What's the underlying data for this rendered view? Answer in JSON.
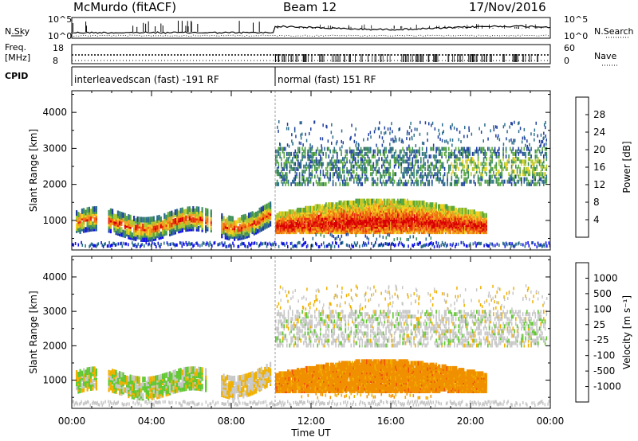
{
  "header": {
    "station": "McMurdo (fitACF)",
    "beam": "Beam 12",
    "date": "17/Nov/2016"
  },
  "status_panels": {
    "nsky_label": "N.Sky",
    "nsearch_label": "N.Search",
    "freq_label_line1": "Freq.",
    "freq_label_line2": "[MHz]",
    "nave_label": "Nave",
    "cpid_label": "CPID",
    "noise_ticks_left": [
      "10^5",
      "10^0"
    ],
    "noise_ticks_right": [
      "10^5",
      "10^0"
    ],
    "freq_ticks": [
      "18",
      "8"
    ],
    "nave_ticks": [
      "60",
      "0"
    ],
    "cpid_segments": [
      {
        "start_hour": 0,
        "end_hour": 10.2,
        "label": "interleavedscan (fast) -191 RF"
      },
      {
        "start_hour": 10.2,
        "end_hour": 24,
        "label": "normal (fast) 151 RF"
      }
    ]
  },
  "chart_data": [
    {
      "type": "heatmap",
      "quantity": "Power",
      "ylabel": "Slant Range [km]",
      "xlabel": "Time UT",
      "xlim_hours": [
        0,
        24
      ],
      "ylim_km": [
        180,
        4600
      ],
      "yticks": [
        1000,
        2000,
        3000,
        4000
      ],
      "xtick_labels": [
        "00:00",
        "04:00",
        "08:00",
        "12:00",
        "16:00",
        "20:00",
        "00:00"
      ],
      "colorbar": {
        "label": "Power [dB]",
        "ticks": [
          "4",
          "8",
          "12",
          "16",
          "20",
          "24",
          "28"
        ],
        "colors": [
          "#1010e8",
          "#2040a0",
          "#2c6e8c",
          "#3f8f5a",
          "#5caa3c",
          "#b0c830",
          "#f0d020",
          "#f0a020",
          "#f07010",
          "#e83010",
          "#d80000"
        ]
      },
      "features": [
        {
          "t0": 0.2,
          "t1": 10.0,
          "r0": 600,
          "r1": 1200,
          "level": "medium-high"
        },
        {
          "t0": 10.2,
          "t1": 20.8,
          "r0": 600,
          "r1": 1600,
          "level": "high"
        },
        {
          "t0": 10.2,
          "t1": 23.8,
          "r0": 2000,
          "r1": 3000,
          "level": "low"
        },
        {
          "t0": 0.0,
          "t1": 24.0,
          "r0": 200,
          "r1": 400,
          "level": "low"
        }
      ]
    },
    {
      "type": "heatmap",
      "quantity": "Velocity",
      "ylabel": "Slant Range [km]",
      "xlabel": "Time UT",
      "xlim_hours": [
        0,
        24
      ],
      "ylim_km": [
        180,
        4600
      ],
      "yticks": [
        1000,
        2000,
        3000,
        4000
      ],
      "xtick_labels": [
        "00:00",
        "04:00",
        "08:00",
        "12:00",
        "16:00",
        "20:00",
        "00:00"
      ],
      "colorbar": {
        "label": "Velocity [m s-1]",
        "ticks": [
          "1000",
          "500",
          "100",
          "25",
          "-25",
          "-100",
          "-500",
          "-1000"
        ],
        "colors": [
          "#2040c0",
          "#2a6c8c",
          "#3a9a50",
          "#60c830",
          "#c8c8c8",
          "#f0b000",
          "#f09000",
          "#f05010",
          "#e00000"
        ]
      },
      "features": [
        {
          "t0": 0.2,
          "t1": 7.0,
          "r0": 600,
          "r1": 1200,
          "velocity": "mixed positive/negative"
        },
        {
          "t0": 10.2,
          "t1": 20.8,
          "r0": 600,
          "r1": 1600,
          "velocity": "-100 to -500"
        },
        {
          "t0": 10.2,
          "t1": 23.8,
          "r0": 2000,
          "r1": 3000,
          "velocity": "near 0 (ground scatter)"
        }
      ]
    }
  ],
  "xlabel": "Time UT",
  "power_label": "Power",
  "power_units": "[dB]",
  "velocity_label": "Velocity",
  "velocity_units": "[m s⁻¹]"
}
